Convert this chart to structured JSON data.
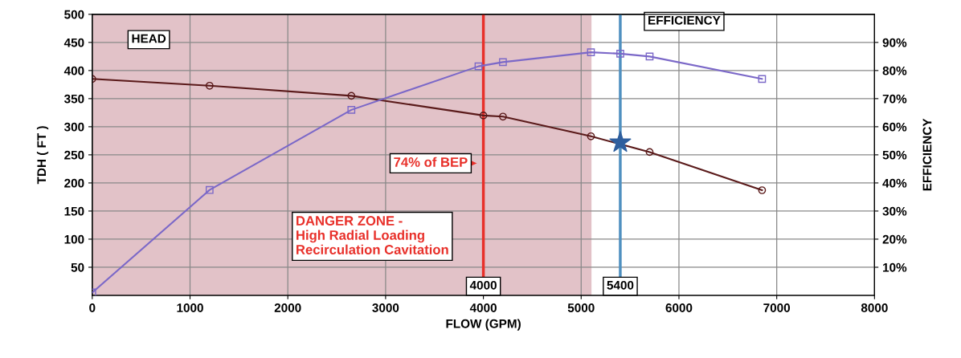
{
  "chart_data": {
    "type": "line",
    "xlabel": "FLOW (GPM)",
    "ylabel": "TDH ( FT )",
    "y2label": "EFFICIENCY",
    "xlim": [
      0,
      8000
    ],
    "xticks": [
      0,
      1000,
      2000,
      3000,
      4000,
      5000,
      6000,
      7000,
      8000
    ],
    "ylim": [
      0,
      500
    ],
    "yticks": [
      50,
      100,
      150,
      200,
      250,
      300,
      350,
      400,
      450,
      500
    ],
    "y2lim": [
      0,
      100
    ],
    "y2ticks": [
      {
        "value": 10,
        "label": "10%"
      },
      {
        "value": 20,
        "label": "20%"
      },
      {
        "value": 30,
        "label": "30%"
      },
      {
        "value": 40,
        "label": "40%"
      },
      {
        "value": 50,
        "label": "50%"
      },
      {
        "value": 60,
        "label": "60%"
      },
      {
        "value": 70,
        "label": "70%"
      },
      {
        "value": 80,
        "label": "80%"
      },
      {
        "value": 90,
        "label": "90%"
      }
    ],
    "grid": true,
    "series": [
      {
        "color": "#5a1a1a",
        "marker": "circle",
        "x": [
          0,
          1200,
          2650,
          4000,
          4200,
          5100,
          5700,
          6850
        ],
        "values": [
          385,
          373,
          355,
          320,
          318,
          283,
          255,
          187
        ]
      },
      {
        "color": "#7b68c8",
        "marker": "square",
        "axis": "y2",
        "x": [
          0,
          1200,
          2650,
          3950,
          4200,
          5100,
          5400,
          5700,
          6850
        ],
        "values": [
          1,
          37.5,
          66,
          81.5,
          83,
          86.5,
          86,
          85,
          77
        ]
      },
      {
        "type": "scatter",
        "color": "#2f5f9e",
        "marker": "star",
        "x": [
          5400
        ],
        "values": [
          272
        ]
      }
    ],
    "bands": [
      {
        "axis": "x",
        "from": 0,
        "to": 5100,
        "color": "#dbb3bb"
      }
    ],
    "ref_lines": [
      {
        "axis": "x",
        "value": 4000,
        "label": "4000",
        "color": "#e8302a"
      },
      {
        "axis": "x",
        "value": 5400,
        "label": "5400",
        "color": "#4f90c0"
      }
    ],
    "annotations": [
      "HEAD",
      "EFFICIENCY",
      "74% of BEP",
      "DANGER ZONE -\nHigh Radial Loading\nRecirculation Cavitation"
    ]
  }
}
